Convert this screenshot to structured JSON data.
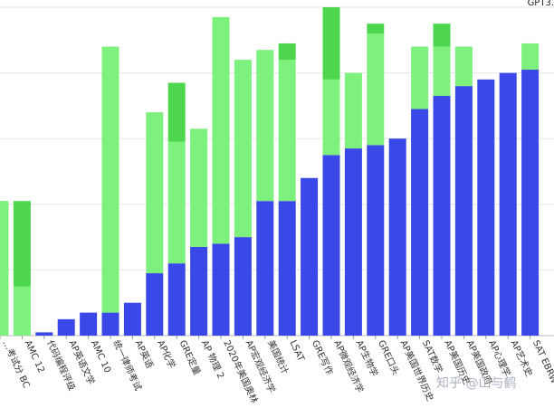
{
  "legend_label": "GPT3.",
  "watermark": "知乎 @山与鹤",
  "chart_data": {
    "type": "bar",
    "stacked": true,
    "grid": "horizontal",
    "ylim": [
      0,
      100
    ],
    "categories": [
      "…考试分 BC",
      "AMC 12",
      "代码编程评级",
      "AP英语文学",
      "AMC 10",
      "统一律师考试",
      "AP英语",
      "AP化学",
      "GRE定量",
      "AP 物理 2",
      "2020年美国奥林",
      "AP宏观经济学",
      "美国统计",
      "LSAT",
      "GRE写作",
      "AP微观经济学",
      "AP生物学",
      "GRE口头",
      "AP美国世界历史",
      "SAT数学",
      "AP美国历史",
      "AP美国政府",
      "AP心理学",
      "AP艺术史",
      "SAT EBRW"
    ],
    "series": [
      {
        "name": "",
        "color": "#3b48e8",
        "values": [
          0,
          0,
          1,
          5,
          7,
          7,
          10,
          19,
          22,
          27,
          28,
          30,
          41,
          41,
          48,
          55,
          57,
          58,
          60,
          69,
          73,
          76,
          78,
          80,
          81
        ]
      },
      {
        "name": "",
        "color": "#7ef07e",
        "values": [
          41,
          15,
          0,
          0,
          0,
          81,
          0,
          49,
          37,
          36,
          69,
          54,
          46,
          43,
          0,
          23,
          23,
          34,
          0,
          19,
          15,
          12,
          0,
          0,
          8
        ]
      },
      {
        "name": "",
        "color": "#4fd64f",
        "values": [
          0,
          26,
          0,
          0,
          0,
          0,
          0,
          0,
          18,
          0,
          0,
          0,
          0,
          5,
          0,
          22,
          0,
          3,
          0,
          0,
          7,
          0,
          0,
          0,
          0
        ]
      }
    ]
  }
}
